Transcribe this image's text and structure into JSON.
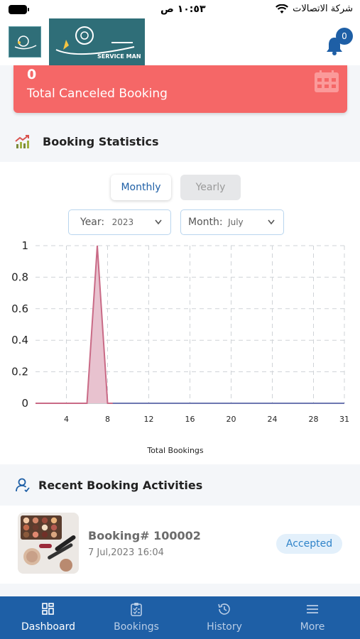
{
  "status_bar": {
    "time": "١٠:٥٣ ص",
    "carrier": "شركة الاتصالات"
  },
  "header": {
    "brand_text": "SERVICE MAN",
    "notification_count": "0"
  },
  "canceled_card": {
    "count": "0",
    "label": "Total Canceled Booking"
  },
  "stats": {
    "title": "Booking Statistics",
    "tabs": {
      "monthly": "Monthly",
      "yearly": "Yearly"
    },
    "year_label": "Year:",
    "year_value": "2023",
    "month_label": "Month:",
    "month_value": "July"
  },
  "chart_data": {
    "type": "area",
    "xlabel": "Total Bookings",
    "ylabel": "",
    "ylim": [
      0,
      1
    ],
    "xlim": [
      1,
      31
    ],
    "y_ticks": [
      "1",
      "0.8",
      "0.6",
      "0.4",
      "0.2",
      "0"
    ],
    "x_ticks": [
      "4",
      "8",
      "12",
      "16",
      "20",
      "24",
      "28",
      "31"
    ],
    "grid": true,
    "series": [
      {
        "x": [
          1,
          2,
          3,
          4,
          5,
          6,
          7,
          8,
          9,
          10,
          11,
          12,
          13,
          14,
          15,
          16,
          17,
          18,
          19,
          20,
          21,
          22,
          23,
          24,
          25,
          26,
          27,
          28,
          29,
          30,
          31
        ],
        "values": [
          0,
          0,
          0,
          0,
          0,
          0,
          1,
          0,
          0,
          0,
          0,
          0,
          0,
          0,
          0,
          0,
          0,
          0,
          0,
          0,
          0,
          0,
          0,
          0,
          0,
          0,
          0,
          0,
          0,
          0,
          0
        ]
      }
    ]
  },
  "recent": {
    "title": "Recent Booking Activities",
    "items": [
      {
        "title": "Booking# 100002",
        "date": "7 Jul,2023 16:04",
        "status": "Accepted"
      }
    ]
  },
  "nav": {
    "items": [
      {
        "label": "Dashboard"
      },
      {
        "label": "Bookings"
      },
      {
        "label": "History"
      },
      {
        "label": "More"
      }
    ]
  },
  "colors": {
    "primary": "#1e5fa6",
    "cancel_red": "#f56767",
    "chart_line": "#c96a86",
    "chart_fill": "#e8c2cf"
  }
}
